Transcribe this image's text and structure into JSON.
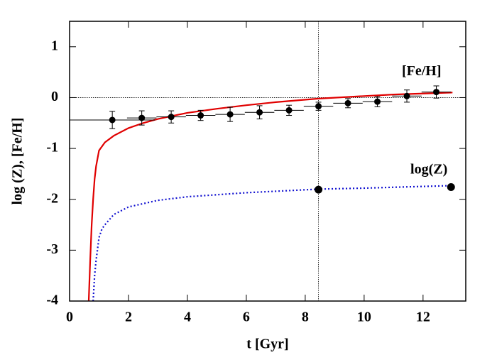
{
  "chart_data": {
    "type": "line",
    "xlabel": "t [Gyr]",
    "ylabel": "log (Z), [Fe/H]",
    "xlim": [
      0,
      13.45
    ],
    "ylim": [
      -4,
      1.5
    ],
    "xticks": [
      0,
      2,
      4,
      6,
      8,
      10,
      12
    ],
    "yticks": [
      -4,
      -3,
      -2,
      -1,
      0,
      1
    ],
    "reference_x": 8.45,
    "reference_y": 0,
    "annotations": [
      {
        "text": "[Fe/H]",
        "x": 11.95,
        "y": 0.5
      },
      {
        "text": "log(Z)",
        "x": 12.2,
        "y": -1.43
      }
    ],
    "series": [
      {
        "name": "[Fe/H] model",
        "color": "#e00000",
        "style": "solid",
        "x": [
          0.65,
          0.7,
          0.75,
          0.8,
          0.85,
          0.9,
          1.0,
          1.2,
          1.5,
          2,
          2.5,
          3,
          4,
          5,
          6,
          7,
          8.45,
          10,
          11,
          12,
          13
        ],
        "values": [
          -4,
          -3.2,
          -2.5,
          -2.0,
          -1.6,
          -1.35,
          -1.04,
          -0.88,
          -0.75,
          -0.6,
          -0.5,
          -0.42,
          -0.3,
          -0.22,
          -0.15,
          -0.09,
          -0.02,
          0.03,
          0.06,
          0.08,
          0.1
        ]
      },
      {
        "name": "log(Z) model",
        "color": "#1010d0",
        "style": "dotted",
        "x": [
          0.8,
          0.85,
          0.9,
          1.0,
          1.1,
          1.2,
          1.5,
          2,
          3,
          4,
          6,
          8.45,
          10,
          13
        ],
        "values": [
          -4,
          -3.5,
          -3.2,
          -2.75,
          -2.58,
          -2.5,
          -2.3,
          -2.15,
          -2.02,
          -1.95,
          -1.87,
          -1.8,
          -1.78,
          -1.73
        ]
      },
      {
        "name": "log(Z) points",
        "color": "#000000",
        "style": "points",
        "x": [
          8.45,
          12.95
        ],
        "values": [
          -1.81,
          -1.76
        ]
      },
      {
        "name": "[Fe/H] data",
        "color": "#000000",
        "style": "errorbars",
        "x": [
          1.45,
          2.45,
          3.45,
          4.45,
          5.45,
          6.45,
          7.45,
          8.45,
          9.45,
          10.45,
          11.45,
          12.45
        ],
        "values": [
          -0.44,
          -0.4,
          -0.38,
          -0.35,
          -0.33,
          -0.29,
          -0.25,
          -0.17,
          -0.11,
          -0.08,
          0.03,
          0.11
        ],
        "errors": [
          0.17,
          0.14,
          0.12,
          0.1,
          0.14,
          0.13,
          0.1,
          0.08,
          0.09,
          0.1,
          0.12,
          0.12
        ],
        "xerrors": [
          1.45,
          0.5,
          0.5,
          0.5,
          0.5,
          0.5,
          0.5,
          0.5,
          0.5,
          0.5,
          0.5,
          0.5
        ]
      }
    ]
  }
}
